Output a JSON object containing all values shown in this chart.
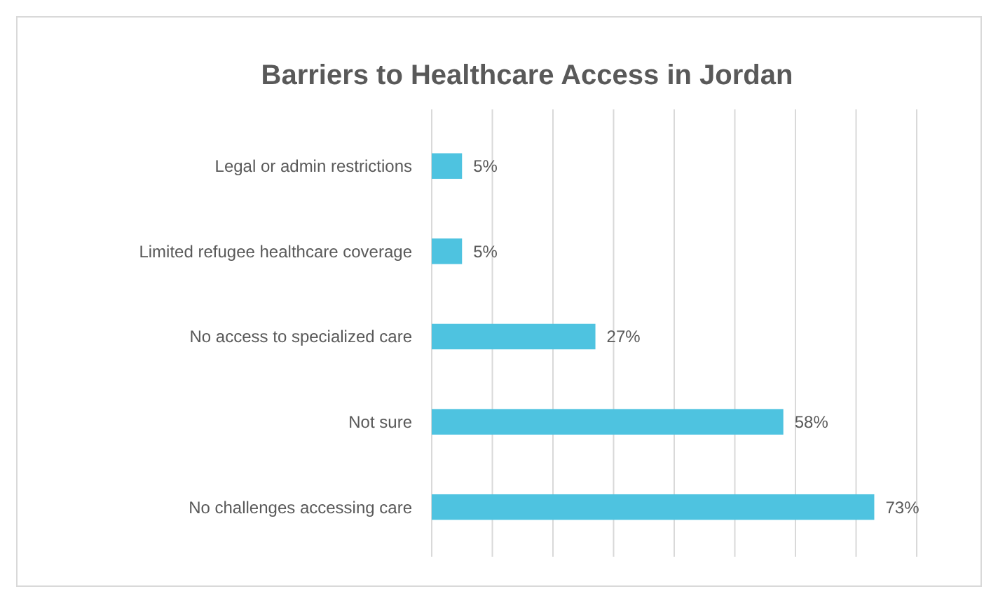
{
  "chart_data": {
    "type": "bar",
    "orientation": "horizontal",
    "title": "Barriers to Healthcare Access in Jordan",
    "categories": [
      "Legal or admin restrictions",
      "Limited refugee healthcare coverage",
      "No access to specialized care",
      "Not sure",
      "No challenges accessing care"
    ],
    "values": [
      5,
      5,
      27,
      58,
      73
    ],
    "value_labels": [
      "5%",
      "5%",
      "27%",
      "58%",
      "73%"
    ],
    "color": "#4ec3e0",
    "xlim": [
      0,
      80
    ],
    "xticks": [
      {
        "value": 0,
        "label": null
      },
      {
        "value": 10,
        "label": null
      },
      {
        "value": 20,
        "label": null
      },
      {
        "value": 30,
        "label": null
      },
      {
        "value": 40,
        "label": null
      },
      {
        "value": 50,
        "label": null
      },
      {
        "value": 60,
        "label": null
      },
      {
        "value": 70,
        "label": null
      },
      {
        "value": 80,
        "label": null
      }
    ],
    "grid": "x",
    "tick_labels": "y"
  }
}
